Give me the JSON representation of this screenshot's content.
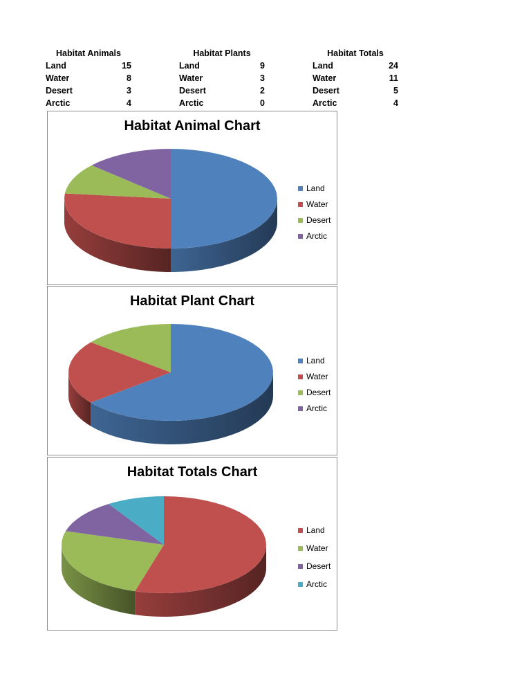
{
  "tables": [
    {
      "header": "Habitat Animals",
      "rows": [
        {
          "label": "Land",
          "value": "15"
        },
        {
          "label": "Water",
          "value": "8"
        },
        {
          "label": "Desert",
          "value": "3"
        },
        {
          "label": "Arctic",
          "value": "4"
        }
      ]
    },
    {
      "header": "Habitat Plants",
      "rows": [
        {
          "label": "Land",
          "value": "9"
        },
        {
          "label": "Water",
          "value": "3"
        },
        {
          "label": "Desert",
          "value": "2"
        },
        {
          "label": "Arctic",
          "value": "0"
        }
      ]
    },
    {
      "header": "Habitat Totals",
      "rows": [
        {
          "label": "Land",
          "value": "24"
        },
        {
          "label": "Water",
          "value": "11"
        },
        {
          "label": "Desert",
          "value": "5"
        },
        {
          "label": "Arctic",
          "value": "4"
        }
      ]
    }
  ],
  "chart_data": [
    {
      "type": "pie",
      "title": "Habitat Animal Chart",
      "categories": [
        "Land",
        "Water",
        "Desert",
        "Arctic"
      ],
      "values": [
        15,
        8,
        3,
        4
      ],
      "colors": [
        "#4F81BD",
        "#C0504D",
        "#9BBB59",
        "#8064A2"
      ],
      "legend": "right"
    },
    {
      "type": "pie",
      "title": "Habitat Plant Chart",
      "categories": [
        "Land",
        "Water",
        "Desert",
        "Arctic"
      ],
      "values": [
        9,
        3,
        2,
        0
      ],
      "colors": [
        "#4F81BD",
        "#C0504D",
        "#9BBB59",
        "#8064A2"
      ],
      "legend": "right"
    },
    {
      "type": "pie",
      "title": "Habitat Totals Chart",
      "categories": [
        "Land",
        "Water",
        "Desert",
        "Arctic"
      ],
      "values": [
        24,
        11,
        5,
        4
      ],
      "colors": [
        "#C0504D",
        "#9BBB59",
        "#8064A2",
        "#4BACC6"
      ],
      "legend": "right"
    }
  ]
}
